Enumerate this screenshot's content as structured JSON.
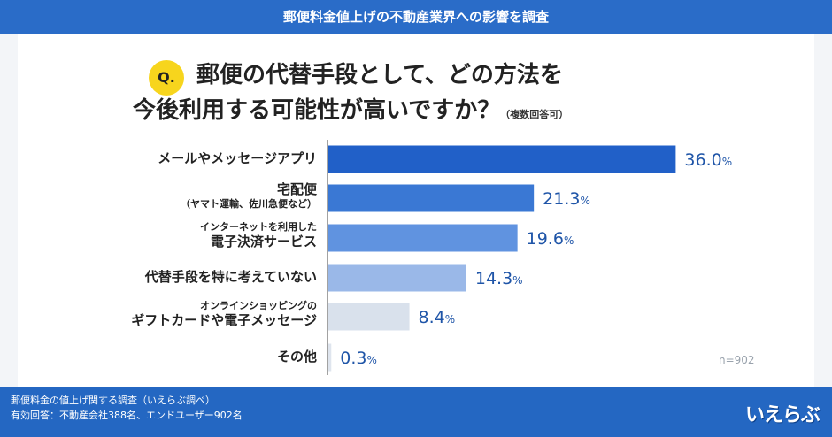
{
  "header": {
    "title": "郵便料金値上げの不動産業界への影響を調査"
  },
  "question": {
    "badge": "Q.",
    "line1": "郵便の代替手段として、どの方法を",
    "line2": "今後利用する可能性が高いですか？",
    "note": "（複数回答可）"
  },
  "chart_data": {
    "type": "bar",
    "orientation": "horizontal",
    "categories": [
      [
        "メールやメッセージアプリ"
      ],
      [
        "宅配便",
        "（ヤマト運輸、佐川急便など）"
      ],
      [
        "インターネットを利用した",
        "電子決済サービス"
      ],
      [
        "代替手段を特に考えていない"
      ],
      [
        "オンラインショッピングの",
        "ギフトカードや電子メッセージ"
      ],
      [
        "その他"
      ]
    ],
    "values": [
      36.0,
      21.3,
      19.6,
      14.3,
      8.4,
      0.3
    ],
    "value_labels": [
      "36.0",
      "21.3",
      "19.6",
      "14.3",
      "8.4",
      "0.3"
    ],
    "unit": "%",
    "xlim": [
      0,
      40
    ],
    "colors": [
      "#2160c8",
      "#3a78d4",
      "#6093e0",
      "#9ab8e8",
      "#d9e1ec",
      "#dfe5ee"
    ]
  },
  "sample": "n=902",
  "footer": {
    "line1": "郵便料金の値上げ関する調査（いえらぶ調べ）",
    "line2": "有効回答：不動産会社388名、エンドユーザー902名",
    "logo": "いえらぶ"
  }
}
